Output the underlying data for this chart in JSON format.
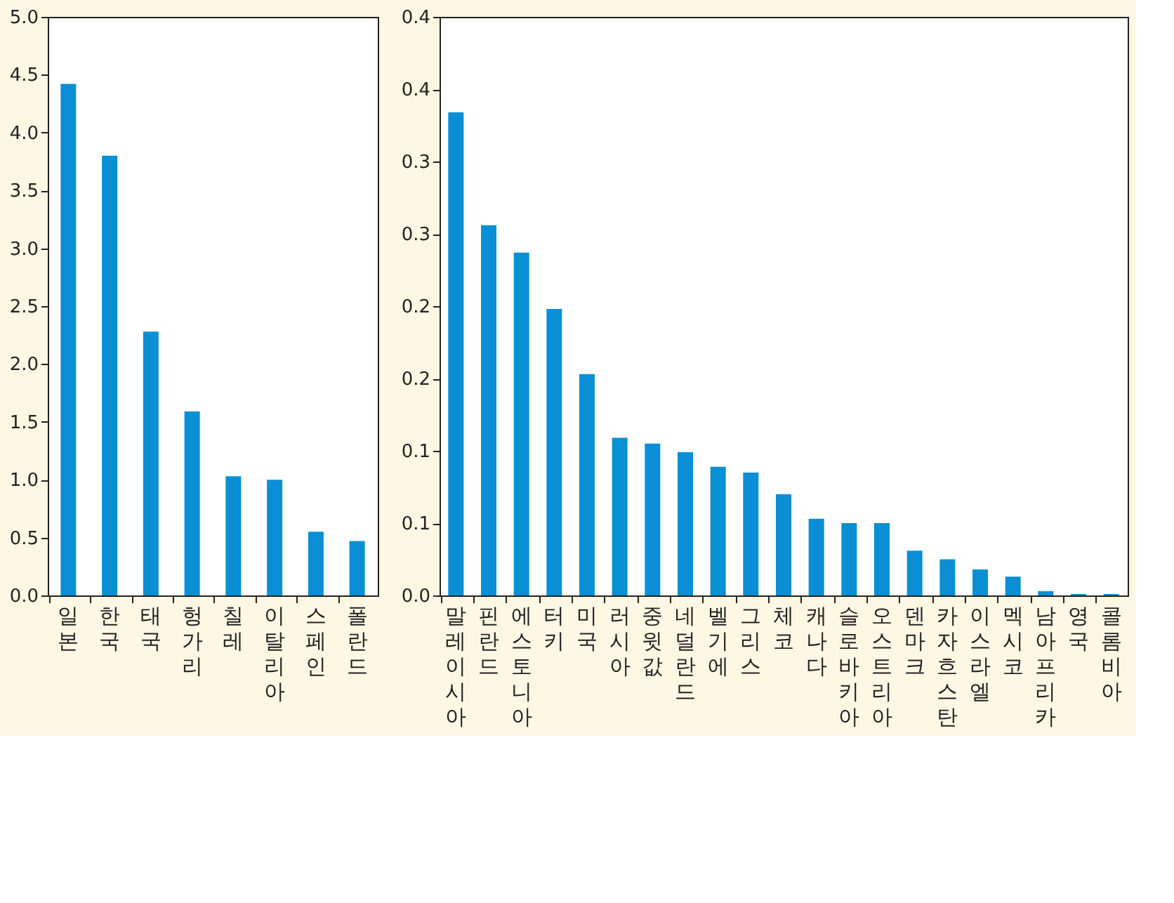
{
  "chart_data": [
    {
      "type": "bar",
      "categories": [
        "일본",
        "한국",
        "태국",
        "헝가리",
        "칠레",
        "이탈리아",
        "스페인",
        "폴란드"
      ],
      "values": [
        4.42,
        3.8,
        2.28,
        1.59,
        1.03,
        1.0,
        0.55,
        0.47
      ],
      "color": "#0a8fd5",
      "ylim": [
        0,
        5
      ],
      "yticks": [
        {
          "value": 0,
          "label": "0.0"
        },
        {
          "value": 0.5,
          "label": "0.5"
        },
        {
          "value": 1,
          "label": "1.0"
        },
        {
          "value": 1.5,
          "label": "1.5"
        },
        {
          "value": 2,
          "label": "2.0"
        },
        {
          "value": 2.5,
          "label": "2.5"
        },
        {
          "value": 3,
          "label": "3.0"
        },
        {
          "value": 3.5,
          "label": "3.5"
        },
        {
          "value": 4,
          "label": "4.0"
        },
        {
          "value": 4.5,
          "label": "4.5"
        },
        {
          "value": 5,
          "label": "5.0"
        }
      ],
      "grid": false
    },
    {
      "type": "bar",
      "categories": [
        "말레이시아",
        "핀란드",
        "에스토니아",
        "터키",
        "미국",
        "러시아",
        "중윗값",
        "네덜란드",
        "벨기에",
        "그리스",
        "체코",
        "캐나다",
        "슬로바키아",
        "오스트리아",
        "덴마크",
        "카자흐스탄",
        "이스라엘",
        "멕시코",
        "남아프리카",
        "영국",
        "콜롬비아"
      ],
      "values": [
        0.334,
        0.256,
        0.237,
        0.198,
        0.153,
        0.109,
        0.105,
        0.099,
        0.089,
        0.085,
        0.07,
        0.053,
        0.05,
        0.05,
        0.031,
        0.025,
        0.018,
        0.013,
        0.003,
        0.001,
        0.001
      ],
      "color": "#0a8fd5",
      "ylim": [
        0,
        0.4
      ],
      "yticks": [
        {
          "value": 0,
          "label": "0.0"
        },
        {
          "value": 0.05,
          "label": "0.1"
        },
        {
          "value": 0.1,
          "label": "0.1"
        },
        {
          "value": 0.15,
          "label": "0.2"
        },
        {
          "value": 0.2,
          "label": "0.2"
        },
        {
          "value": 0.25,
          "label": "0.3"
        },
        {
          "value": 0.3,
          "label": "0.3"
        },
        {
          "value": 0.35,
          "label": "0.4"
        },
        {
          "value": 0.4,
          "label": "0.4"
        }
      ],
      "grid": false
    }
  ]
}
